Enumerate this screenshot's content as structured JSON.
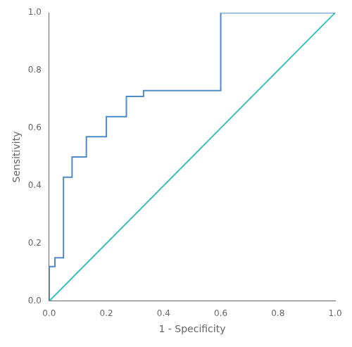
{
  "chart_data": {
    "type": "line",
    "xlabel": "1 - Specificity",
    "ylabel": "Sensitivity",
    "series": [
      {
        "color": "#4d8bc9",
        "x": [
          0.0,
          0.0,
          0.02,
          0.02,
          0.05,
          0.05,
          0.08,
          0.08,
          0.13,
          0.13,
          0.2,
          0.2,
          0.27,
          0.27,
          0.33,
          0.33,
          0.6,
          0.6,
          1.0
        ],
        "values": [
          0.0,
          0.12,
          0.12,
          0.15,
          0.15,
          0.43,
          0.43,
          0.5,
          0.5,
          0.57,
          0.57,
          0.64,
          0.64,
          0.71,
          0.71,
          0.73,
          0.73,
          1.0,
          1.0
        ]
      },
      {
        "color": "#3dbdbd",
        "x": [
          0.0,
          1.0
        ],
        "values": [
          0.0,
          1.0
        ]
      }
    ],
    "xlim": [
      0,
      1
    ],
    "ylim": [
      0,
      1
    ],
    "xticks": [
      {
        "value": 0,
        "label": "0.0"
      },
      0.2,
      0.4,
      0.6,
      0.8,
      {
        "value": 1,
        "label": "1.0"
      }
    ],
    "yticks": [
      {
        "value": 0,
        "label": "0.0"
      },
      0.2,
      0.4,
      0.6,
      0.8,
      {
        "value": 1,
        "label": "1.0"
      }
    ],
    "grid": false
  }
}
